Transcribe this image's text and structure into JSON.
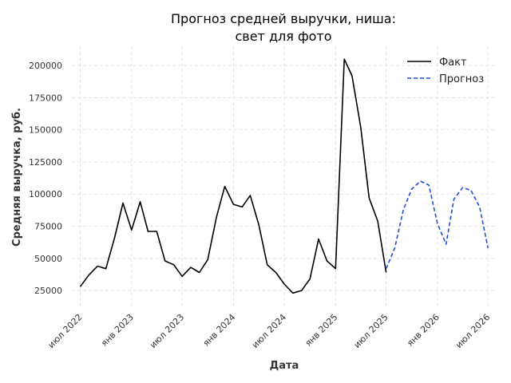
{
  "chart_data": {
    "type": "line",
    "title_line1": "Прогноз средней выручки, ниша:",
    "title_line2": "свет для фото",
    "xlabel": "Дата",
    "ylabel": "Средняя выручка, руб.",
    "ylim": [
      12000,
      215000
    ],
    "xlim": [
      "2022-06-01",
      "2026-08-01"
    ],
    "yticks": [
      25000,
      50000,
      75000,
      100000,
      125000,
      150000,
      175000,
      200000
    ],
    "xticks": [
      {
        "date": "2022-07-01",
        "label": "июл 2022"
      },
      {
        "date": "2023-01-01",
        "label": "янв 2023"
      },
      {
        "date": "2023-07-01",
        "label": "июл 2023"
      },
      {
        "date": "2024-01-01",
        "label": "янв 2024"
      },
      {
        "date": "2024-07-01",
        "label": "июл 2024"
      },
      {
        "date": "2025-01-01",
        "label": "янв 2025"
      },
      {
        "date": "2025-07-01",
        "label": "июл 2025"
      },
      {
        "date": "2026-01-01",
        "label": "янв 2026"
      },
      {
        "date": "2026-07-01",
        "label": "июл 2026"
      }
    ],
    "grid": true,
    "legend_position": "top-right",
    "series": [
      {
        "name": "Факт",
        "color": "#000000",
        "style": "solid",
        "x": [
          "2022-07",
          "2022-08",
          "2022-09",
          "2022-10",
          "2022-11",
          "2022-12",
          "2023-01",
          "2023-02",
          "2023-03",
          "2023-04",
          "2023-05",
          "2023-06",
          "2023-07",
          "2023-08",
          "2023-09",
          "2023-10",
          "2023-11",
          "2023-12",
          "2024-01",
          "2024-02",
          "2024-03",
          "2024-04",
          "2024-05",
          "2024-06",
          "2024-07",
          "2024-08",
          "2024-09",
          "2024-10",
          "2024-11",
          "2024-12",
          "2025-01",
          "2025-02",
          "2025-03",
          "2025-04",
          "2025-05",
          "2025-06",
          "2025-07"
        ],
        "values": [
          28000,
          37000,
          44000,
          42000,
          66000,
          93000,
          72000,
          94000,
          71000,
          71000,
          48000,
          45000,
          36000,
          43000,
          39000,
          49000,
          82000,
          106000,
          92000,
          90000,
          99000,
          76000,
          45000,
          39000,
          30000,
          23000,
          25000,
          34000,
          65000,
          48000,
          42000,
          205000,
          192000,
          152000,
          97000,
          79000,
          39000
        ]
      },
      {
        "name": "Прогноз",
        "color": "#1f4fd1",
        "style": "dashed",
        "x": [
          "2025-07",
          "2025-08",
          "2025-09",
          "2025-10",
          "2025-11",
          "2025-12",
          "2026-01",
          "2026-02",
          "2026-03",
          "2026-04",
          "2026-05",
          "2026-06",
          "2026-07"
        ],
        "values": [
          42000,
          58000,
          88000,
          104000,
          110000,
          107000,
          77000,
          61000,
          96000,
          105000,
          103000,
          90000,
          58000
        ]
      }
    ]
  }
}
